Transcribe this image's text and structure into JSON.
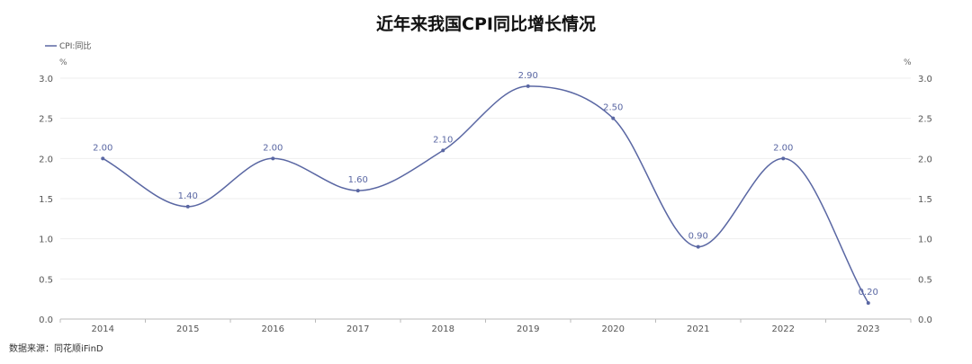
{
  "chart_data": {
    "type": "line",
    "title": "近年来我国CPI同比增长情况",
    "categories": [
      "2014",
      "2015",
      "2016",
      "2017",
      "2018",
      "2019",
      "2020",
      "2021",
      "2022",
      "2023"
    ],
    "series": [
      {
        "name": "CPI:同比",
        "values": [
          2.0,
          1.4,
          2.0,
          1.6,
          2.1,
          2.9,
          2.5,
          0.9,
          2.0,
          0.2
        ]
      }
    ],
    "data_labels": [
      "2.00",
      "1.40",
      "2.00",
      "1.60",
      "2.10",
      "2.90",
      "2.50",
      "0.90",
      "2.00",
      "0.20"
    ],
    "y_unit_left": "%",
    "y_unit_right": "%",
    "ylim": [
      0,
      3
    ],
    "yticks": [
      "0.0",
      "0.5",
      "1.0",
      "1.5",
      "2.0",
      "2.5",
      "3.0"
    ],
    "grid": true,
    "legend_position": "top-left",
    "line_color": "#5a67a3",
    "smooth": true
  },
  "source_text": "数据来源：同花顺iFinD"
}
